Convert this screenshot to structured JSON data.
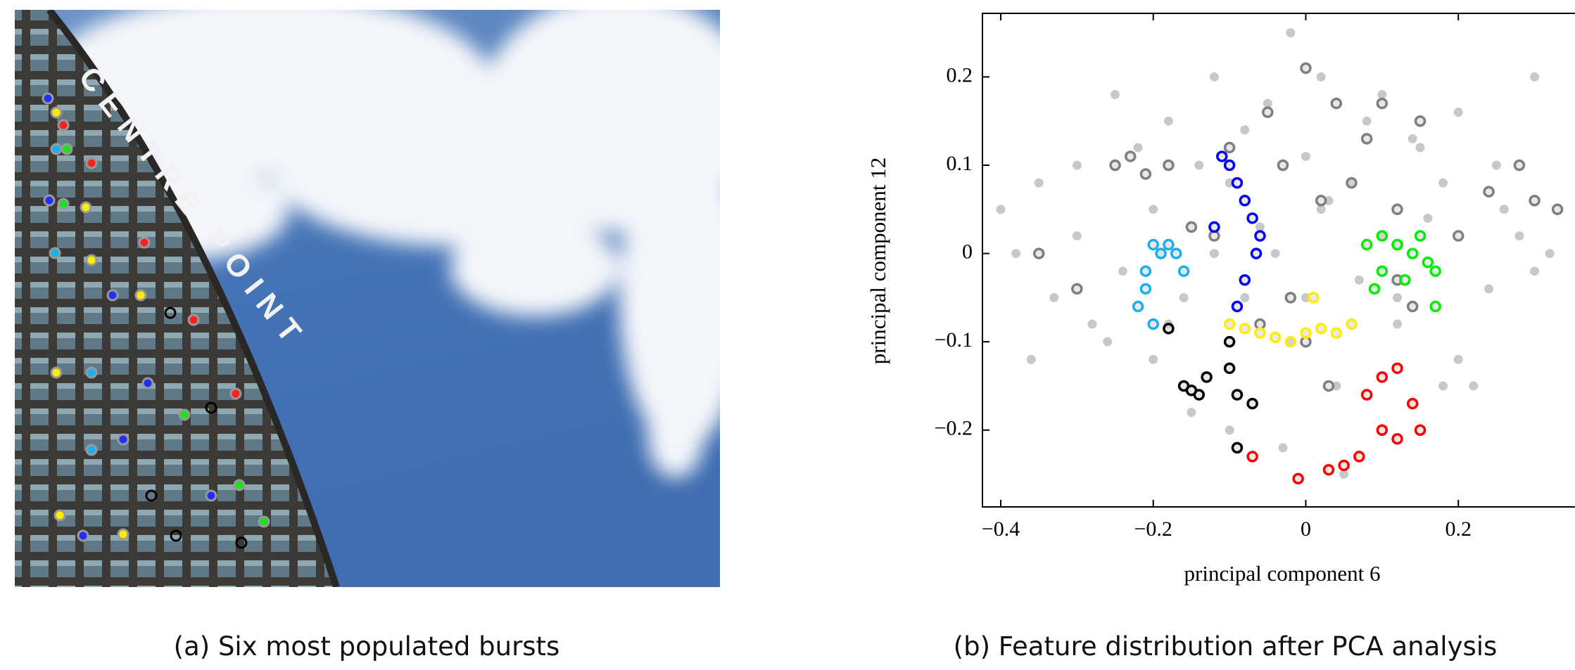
{
  "figure": {
    "captions": [
      "(a) Six most populated bursts",
      "(b) Feature distribution after PCA analysis"
    ],
    "photo_sign": "CENTRE POINT"
  },
  "chart_data": {
    "type": "scatter",
    "x_label": "principal component 6",
    "y_label": "principal component 12",
    "xlim": [
      -0.424,
      0.353
    ],
    "ylim": [
      -0.287,
      0.272
    ],
    "xticks": [
      {
        "value": -0.4,
        "label": "−0.4"
      },
      {
        "value": -0.2,
        "label": "−0.2"
      },
      0,
      0.2
    ],
    "yticks": [
      {
        "value": -0.2,
        "label": "−0.2"
      },
      {
        "value": -0.1,
        "label": "−0.1"
      },
      0,
      0.1,
      0.2
    ],
    "grid": false,
    "series": [
      {
        "color": "#c8c8c8",
        "marker": "dot",
        "x": [
          -0.4,
          -0.38,
          -0.35,
          -0.33,
          -0.3,
          -0.28,
          -0.25,
          -0.22,
          -0.2,
          -0.18,
          -0.15,
          -0.12,
          -0.1,
          -0.08,
          -0.05,
          -0.03,
          0,
          0.02,
          0.05,
          0.08,
          0.1,
          0.12,
          0.15,
          0.18,
          0.2,
          0.22,
          0.25,
          0.28,
          0.3,
          0.32,
          -0.3,
          -0.26,
          -0.2,
          -0.16,
          -0.1,
          -0.06,
          -0.02,
          0.03,
          0.07,
          0.12,
          0.16,
          0.2,
          0.26,
          -0.14,
          -0.08,
          0.0,
          0.06,
          0.1,
          -0.04,
          0.04,
          -0.24,
          0.24,
          -0.12,
          0.14,
          -0.02,
          0.02,
          -0.18,
          0.18,
          -0.36,
          0.3
        ],
        "values": [
          0.05,
          0.0,
          0.08,
          -0.05,
          0.1,
          -0.08,
          0.18,
          0.12,
          -0.12,
          0.15,
          -0.18,
          0.2,
          0.08,
          0.14,
          0.17,
          -0.22,
          0.11,
          0.2,
          -0.25,
          0.15,
          0.18,
          -0.05,
          0.12,
          0.08,
          0.16,
          -0.15,
          0.1,
          0.02,
          0.2,
          0.0,
          0.02,
          -0.1,
          0.05,
          -0.05,
          -0.2,
          0.03,
          -0.1,
          0.06,
          -0.03,
          -0.08,
          0.04,
          -0.12,
          0.05,
          0.1,
          -0.05,
          -0.05,
          0.08,
          0.02,
          0.0,
          -0.15,
          -0.02,
          -0.04,
          0.0,
          0.13,
          0.25,
          0.05,
          -0.08,
          -0.15,
          -0.12,
          -0.02
        ]
      },
      {
        "color": "#7f7f7f",
        "marker": "ring",
        "x": [
          -0.25,
          -0.23,
          -0.21,
          -0.18,
          -0.15,
          -0.12,
          -0.1,
          -0.05,
          -0.03,
          0.0,
          0.02,
          0.04,
          0.06,
          0.08,
          0.1,
          0.12,
          0.15,
          0.2,
          0.24,
          0.28,
          0.3,
          0.33,
          -0.3,
          -0.35,
          -0.02,
          0.0,
          0.03,
          -0.06,
          0.12,
          0.14
        ],
        "values": [
          0.1,
          0.11,
          0.09,
          0.1,
          0.03,
          0.02,
          0.12,
          0.16,
          0.1,
          0.21,
          0.06,
          0.17,
          0.08,
          0.13,
          0.17,
          0.05,
          0.15,
          0.02,
          0.07,
          0.1,
          0.06,
          0.05,
          -0.04,
          0.0,
          -0.05,
          -0.1,
          -0.15,
          -0.08,
          -0.03,
          -0.06
        ]
      },
      {
        "color": "#0000ff",
        "marker": "ring",
        "x": [
          -0.11,
          -0.1,
          -0.09,
          -0.08,
          -0.07,
          -0.06,
          -0.065,
          -0.08,
          -0.12,
          -0.09
        ],
        "values": [
          0.11,
          0.1,
          0.08,
          0.06,
          0.04,
          0.02,
          0.0,
          -0.03,
          0.03,
          -0.06
        ]
      },
      {
        "color": "#1ab0f0",
        "marker": "ring",
        "x": [
          -0.2,
          -0.19,
          -0.18,
          -0.17,
          -0.21,
          -0.21,
          -0.22,
          -0.2,
          -0.16,
          -0.19
        ],
        "values": [
          0.01,
          0.0,
          0.01,
          0.0,
          -0.02,
          -0.04,
          -0.06,
          -0.08,
          -0.02,
          0.0
        ]
      },
      {
        "color": "#ffee00",
        "marker": "ring",
        "x": [
          -0.1,
          -0.08,
          -0.06,
          -0.04,
          -0.02,
          0.0,
          0.02,
          0.04,
          0.06,
          0.01
        ],
        "values": [
          -0.08,
          -0.085,
          -0.09,
          -0.095,
          -0.1,
          -0.09,
          -0.085,
          -0.09,
          -0.08,
          -0.05
        ]
      },
      {
        "color": "#000000",
        "marker": "ring",
        "x": [
          -0.18,
          -0.16,
          -0.14,
          -0.13,
          -0.1,
          -0.09,
          -0.07,
          -0.1,
          -0.09,
          -0.15
        ],
        "values": [
          -0.085,
          -0.15,
          -0.16,
          -0.14,
          -0.1,
          -0.16,
          -0.17,
          -0.13,
          -0.22,
          -0.155
        ]
      },
      {
        "color": "#ff0000",
        "marker": "ring",
        "x": [
          0.08,
          0.1,
          0.12,
          0.14,
          0.15,
          0.12,
          0.1,
          0.07,
          0.05,
          0.03,
          -0.01,
          -0.07
        ],
        "values": [
          -0.16,
          -0.14,
          -0.13,
          -0.17,
          -0.2,
          -0.21,
          -0.2,
          -0.23,
          -0.24,
          -0.245,
          -0.255,
          -0.23
        ]
      },
      {
        "color": "#00ee00",
        "marker": "ring",
        "x": [
          0.08,
          0.1,
          0.12,
          0.14,
          0.16,
          0.17,
          0.15,
          0.1,
          0.12,
          0.13,
          0.09,
          0.17
        ],
        "values": [
          0.01,
          0.02,
          0.01,
          0.0,
          -0.01,
          -0.02,
          0.02,
          -0.02,
          0.01,
          -0.03,
          -0.04,
          -0.06
        ]
      }
    ]
  }
}
